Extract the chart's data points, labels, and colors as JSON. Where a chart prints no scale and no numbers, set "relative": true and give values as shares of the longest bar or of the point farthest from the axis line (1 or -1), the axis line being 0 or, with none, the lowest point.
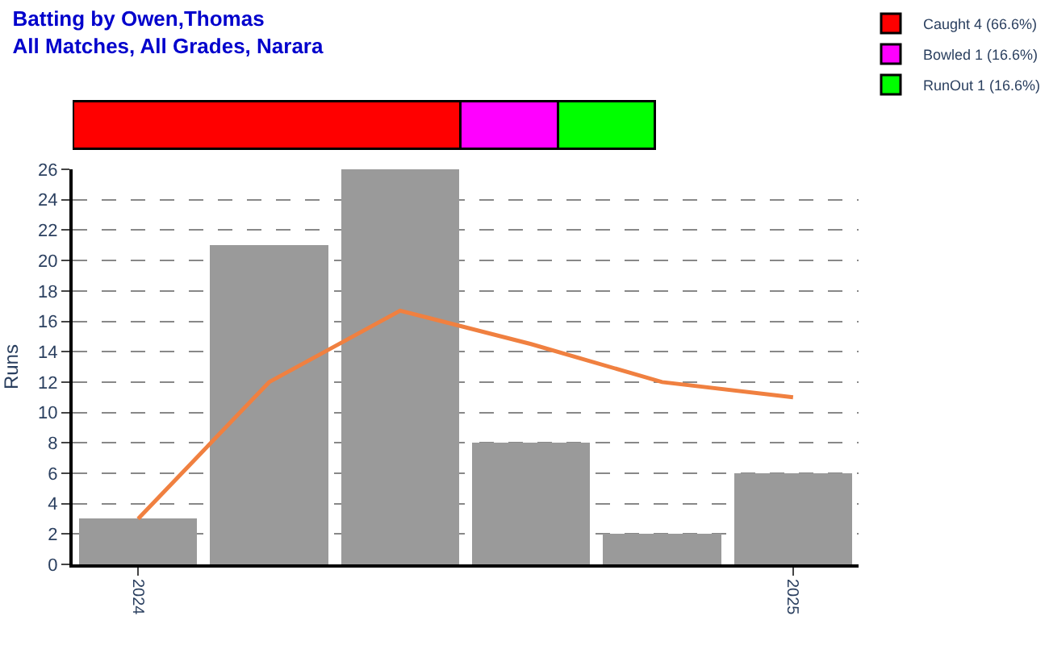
{
  "chart_data": [
    {
      "type": "bar",
      "orientation": "horizontal",
      "stacked": true,
      "relative": true,
      "title": "Batting by Owen,Thomas\nAll Matches, All Grades, Narara",
      "legend": "top right",
      "categories": [
        null
      ],
      "series": [
        {
          "name": "Caught 4 (66.6%)",
          "color": "#ff0000",
          "values": [
            0.666
          ]
        },
        {
          "name": "Bowled 1 (16.6%)",
          "color": "#ff00ff",
          "values": [
            0.167
          ]
        },
        {
          "name": "RunOut 1 (16.6%)",
          "color": "#00ff00",
          "values": [
            0.167
          ]
        }
      ]
    },
    {
      "type": "bar",
      "categories": [
        "2024",
        null,
        null,
        null,
        null,
        "2025"
      ],
      "ylabel": "Runs",
      "ylim": [
        0,
        26
      ],
      "yticks": [
        0,
        2,
        4,
        6,
        8,
        10,
        12,
        14,
        16,
        18,
        20,
        22,
        24,
        26
      ],
      "grid": "y",
      "series": [
        {
          "type": "bar",
          "color": "#9a9a9a",
          "values": [
            3,
            21,
            26,
            8,
            2,
            6
          ]
        },
        {
          "type": "line",
          "color": "#f08040",
          "values": [
            3,
            12,
            16.7,
            14.5,
            12,
            11
          ]
        }
      ]
    }
  ]
}
